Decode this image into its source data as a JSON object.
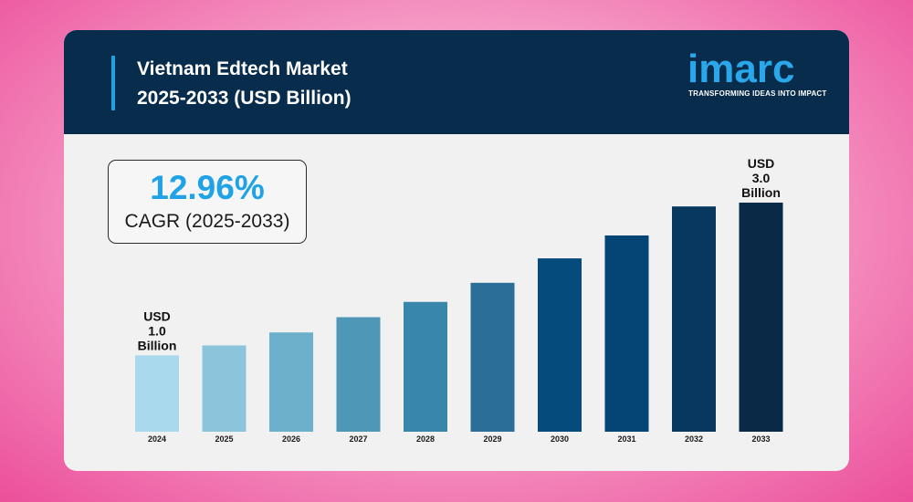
{
  "header": {
    "title_line1": "Vietnam Edtech Market",
    "title_line2": "2025-2033 (USD Billion)"
  },
  "logo": {
    "wordmark": "imarc",
    "tagline": "TRANSFORMING IDEAS INTO IMPACT"
  },
  "cagr": {
    "value": "12.96%",
    "label": "CAGR (2025-2033)"
  },
  "colors": {
    "header_bg": "#082c4c",
    "accent": "#1fa3e6",
    "bars": [
      "#a9d9ec",
      "#8cc5db",
      "#6cb0cb",
      "#4e97b6",
      "#3986ab",
      "#2b6e97",
      "#054c7d",
      "#054576",
      "#08385f",
      "#0a2946"
    ]
  },
  "chart_data": {
    "type": "bar",
    "categories": [
      "2024",
      "2025",
      "2026",
      "2027",
      "2028",
      "2029",
      "2030",
      "2031",
      "2032",
      "2033"
    ],
    "values": [
      1.0,
      1.13,
      1.3,
      1.5,
      1.7,
      1.95,
      2.27,
      2.57,
      2.95,
      3.0
    ],
    "ylim": [
      0,
      3.0
    ],
    "annotations": [
      {
        "category": "2024",
        "lines": [
          "USD",
          "1.0",
          "Billion"
        ]
      },
      {
        "category": "2033",
        "lines": [
          "USD",
          "3.0",
          "Billion"
        ]
      }
    ]
  }
}
